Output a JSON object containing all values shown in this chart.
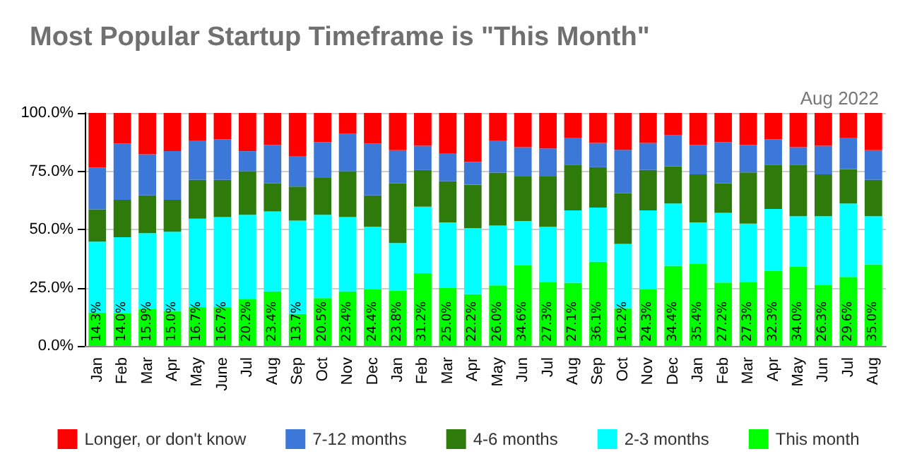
{
  "chart_data": {
    "type": "bar",
    "title": "Most Popular Startup Timeframe is \"This Month\"",
    "subtitle": "Aug 2022",
    "stacked": true,
    "grid": "y",
    "legend": "bottom",
    "categories": [
      "Jan",
      "Feb",
      "Mar",
      "Apr",
      "May",
      "June",
      "Jul",
      "Aug",
      "Sep",
      "Oct",
      "Nov",
      "Dec",
      "Jan",
      "Feb",
      "Mar",
      "Apr",
      "May",
      "Jun",
      "Jul",
      "Aug",
      "Sep",
      "Oct",
      "Nov",
      "Dec",
      "Jan",
      "Feb",
      "Mar",
      "Apr",
      "May",
      "Jun",
      "Jul",
      "Aug"
    ],
    "ylim": [
      0,
      100
    ],
    "yticks": [
      {
        "value": 0,
        "label": "0.0%"
      },
      {
        "value": 25,
        "label": "25.0%"
      },
      {
        "value": 50,
        "label": "50.0%"
      },
      {
        "value": 75,
        "label": "75.0%"
      },
      {
        "value": 100,
        "label": "100.0%"
      }
    ],
    "series": [
      {
        "name": "This month",
        "color": "#00ff00",
        "values": [
          14.3,
          14.0,
          15.9,
          15.0,
          16.7,
          16.7,
          20.2,
          23.4,
          13.7,
          20.5,
          23.4,
          24.4,
          23.8,
          31.2,
          25.0,
          22.2,
          26.0,
          34.6,
          27.3,
          27.1,
          36.1,
          16.2,
          24.3,
          34.4,
          35.4,
          27.2,
          27.3,
          32.3,
          34.0,
          26.3,
          29.6,
          35.0
        ],
        "value_labels": [
          "14.3%",
          "14.0%",
          "15.9%",
          "15.0%",
          "16.7%",
          "16.7%",
          "20.2%",
          "23.4%",
          "13.7%",
          "20.5%",
          "23.4%",
          "24.4%",
          "23.8%",
          "31.2%",
          "25.0%",
          "22.2%",
          "26.0%",
          "34.6%",
          "27.3%",
          "27.1%",
          "36.1%",
          "16.2%",
          "24.3%",
          "34.4%",
          "35.4%",
          "27.2%",
          "27.3%",
          "32.3%",
          "34.0%",
          "26.3%",
          "29.6%",
          "35.0%"
        ]
      },
      {
        "name": "2-3 months",
        "color": "#00ffff",
        "values": [
          30.5,
          32.7,
          32.5,
          34.0,
          37.9,
          38.6,
          36.1,
          34.3,
          40.1,
          35.8,
          31.9,
          26.7,
          20.4,
          28.6,
          28.0,
          28.3,
          25.7,
          19.0,
          23.8,
          31.1,
          23.3,
          27.6,
          33.9,
          26.7,
          17.6,
          29.9,
          25.2,
          26.5,
          21.7,
          29.4,
          31.5,
          20.7
        ]
      },
      {
        "name": "4-6 months",
        "color": "#2e7a0a",
        "values": [
          13.8,
          16.0,
          16.2,
          13.7,
          16.7,
          16.0,
          18.7,
          12.1,
          14.6,
          15.8,
          19.7,
          13.5,
          25.6,
          15.7,
          17.7,
          18.7,
          22.7,
          19.1,
          21.6,
          19.6,
          17.3,
          21.7,
          17.3,
          16.0,
          20.6,
          12.7,
          22.0,
          19.0,
          22.1,
          17.9,
          14.8,
          15.6
        ]
      },
      {
        "name": "7-12 months",
        "color": "#3c78d8",
        "values": [
          17.9,
          24.2,
          17.7,
          20.9,
          16.9,
          17.3,
          8.6,
          16.5,
          13.1,
          15.4,
          16.1,
          22.3,
          14.2,
          10.4,
          11.8,
          9.8,
          13.8,
          12.6,
          12.1,
          11.6,
          10.4,
          18.7,
          11.6,
          13.4,
          12.7,
          17.7,
          11.8,
          10.8,
          7.5,
          12.3,
          13.5,
          12.7
        ]
      },
      {
        "name": "Longer, or don't know",
        "color": "#ff0000",
        "values": [
          23.5,
          13.1,
          17.7,
          16.4,
          11.8,
          11.4,
          16.4,
          13.7,
          18.5,
          12.5,
          8.9,
          13.1,
          16.0,
          14.1,
          17.5,
          21.0,
          11.8,
          14.7,
          15.2,
          10.6,
          12.9,
          15.8,
          12.9,
          9.5,
          13.7,
          12.5,
          13.7,
          11.4,
          14.7,
          14.1,
          10.6,
          16.0
        ]
      }
    ]
  }
}
